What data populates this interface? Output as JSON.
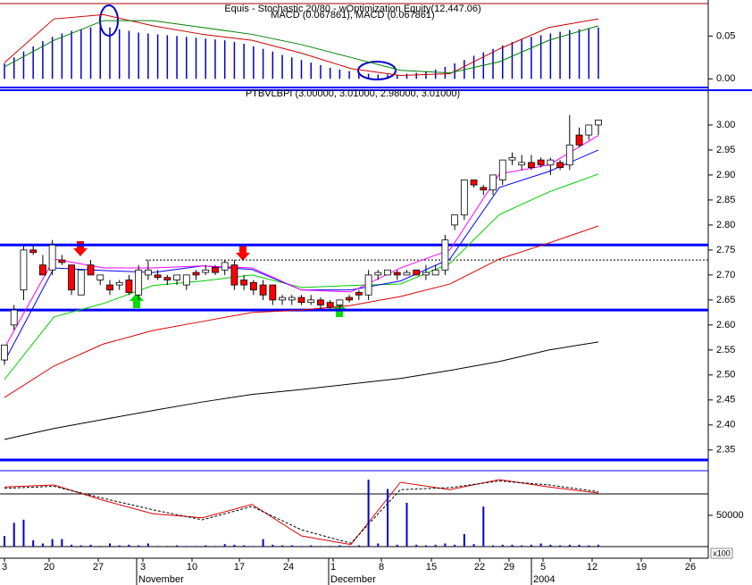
{
  "chart_data": [
    {
      "type": "macd",
      "title": "Equis - Stochastic 20/80 - wOptimization Equity(12,447.06)",
      "subtitle": "MACD (0.067861), MACD (0.067861)",
      "ylim": [
        -0.007,
        0.09
      ],
      "yticks": [
        {
          "value": 0,
          "label": "0.00"
        },
        {
          "value": 0.05,
          "label": "0.05"
        }
      ],
      "histogram": {
        "color": "#0000cc",
        "values": [
          0.018,
          0.025,
          0.032,
          0.038,
          0.044,
          0.049,
          0.053,
          0.056,
          0.058,
          0.06,
          0.061,
          0.06,
          0.058,
          0.056,
          0.054,
          0.053,
          0.052,
          0.051,
          0.05,
          0.049,
          0.048,
          0.047,
          0.046,
          0.045,
          0.043,
          0.041,
          0.038,
          0.035,
          0.032,
          0.028,
          0.025,
          0.022,
          0.019,
          0.016,
          0.013,
          0.011,
          0.009,
          0.007,
          0.006,
          0.005,
          0.005,
          0.005,
          0.006,
          0.007,
          0.009,
          0.011,
          0.014,
          0.018,
          0.022,
          0.027,
          0.031,
          0.035,
          0.039,
          0.043,
          0.046,
          0.049,
          0.051,
          0.053,
          0.055,
          0.057,
          0.058,
          0.059,
          0.06
        ]
      },
      "series": [
        {
          "color": "#cc0000",
          "values": [
            0.019,
            0.07,
            0.075,
            0.062,
            0.052,
            0.045,
            0.03,
            0.012,
            0.004,
            0.006,
            0.035,
            0.06,
            0.07
          ]
        },
        {
          "color": "#008000",
          "values": [
            0.014,
            0.045,
            0.068,
            0.068,
            0.06,
            0.052,
            0.04,
            0.025,
            0.01,
            0.007,
            0.02,
            0.045,
            0.062
          ]
        }
      ]
    },
    {
      "type": "candlestick",
      "title": "PTBVLBPI (3.00000, 3.01000, 2.98000, 3.01000)",
      "ylim": [
        2.33,
        3.066
      ],
      "yticks": [
        {
          "value": 3,
          "label": "3.00"
        },
        2.95,
        {
          "value": 2.9,
          "label": "2.90"
        },
        2.85,
        {
          "value": 2.8,
          "label": "2.80"
        },
        2.75,
        {
          "value": 2.7,
          "label": "2.70"
        },
        2.65,
        {
          "value": 2.6,
          "label": "2.60"
        },
        2.55,
        {
          "value": 2.5,
          "label": "2.50"
        },
        2.45,
        {
          "value": 2.4,
          "label": "2.40"
        },
        2.35
      ],
      "up_color": "#ffffff",
      "down_color": "#ff0000",
      "candles": [
        [
          2.53,
          2.56,
          2.52,
          2.56
        ],
        [
          2.6,
          2.64,
          2.59,
          2.63
        ],
        [
          2.67,
          2.76,
          2.65,
          2.75
        ],
        [
          2.75,
          2.76,
          2.74,
          2.745
        ],
        [
          2.72,
          2.74,
          2.7,
          2.7
        ],
        [
          2.71,
          2.77,
          2.7,
          2.76
        ],
        [
          2.73,
          2.74,
          2.72,
          2.725
        ],
        [
          2.72,
          2.72,
          2.66,
          2.67
        ],
        [
          2.66,
          2.71,
          2.66,
          2.71
        ],
        [
          2.72,
          2.73,
          2.7,
          2.7
        ],
        [
          2.69,
          2.7,
          2.68,
          2.7
        ],
        [
          2.68,
          2.69,
          2.66,
          2.67
        ],
        [
          2.68,
          2.69,
          2.67,
          2.685
        ],
        [
          2.69,
          2.7,
          2.66,
          2.665
        ],
        [
          2.66,
          2.72,
          2.65,
          2.71
        ],
        [
          2.7,
          2.73,
          2.69,
          2.71
        ],
        [
          2.7,
          2.71,
          2.69,
          2.695
        ],
        [
          2.695,
          2.7,
          2.68,
          2.69
        ],
        [
          2.69,
          2.7,
          2.68,
          2.7
        ],
        [
          2.68,
          2.7,
          2.67,
          2.7
        ],
        [
          2.705,
          2.71,
          2.69,
          2.7
        ],
        [
          2.705,
          2.72,
          2.7,
          2.71
        ],
        [
          2.715,
          2.72,
          2.7,
          2.705
        ],
        [
          2.71,
          2.73,
          2.7,
          2.725
        ],
        [
          2.72,
          2.73,
          2.67,
          2.68
        ],
        [
          2.69,
          2.7,
          2.67,
          2.68
        ],
        [
          2.685,
          2.69,
          2.66,
          2.67
        ],
        [
          2.68,
          2.69,
          2.65,
          2.66
        ],
        [
          2.68,
          2.68,
          2.64,
          2.65
        ],
        [
          2.65,
          2.66,
          2.64,
          2.655
        ],
        [
          2.65,
          2.66,
          2.64,
          2.655
        ],
        [
          2.655,
          2.66,
          2.64,
          2.645
        ],
        [
          2.645,
          2.66,
          2.64,
          2.65
        ],
        [
          2.65,
          2.655,
          2.63,
          2.64
        ],
        [
          2.645,
          2.65,
          2.63,
          2.635
        ],
        [
          2.64,
          2.65,
          2.63,
          2.65
        ],
        [
          2.655,
          2.66,
          2.645,
          2.65
        ],
        [
          2.665,
          2.67,
          2.65,
          2.66
        ],
        [
          2.66,
          2.71,
          2.65,
          2.7
        ],
        [
          2.7,
          2.71,
          2.69,
          2.705
        ],
        [
          2.7,
          2.71,
          2.7,
          2.71
        ],
        [
          2.705,
          2.71,
          2.69,
          2.7
        ],
        [
          2.7,
          2.71,
          2.7,
          2.705
        ],
        [
          2.71,
          2.71,
          2.7,
          2.7
        ],
        [
          2.7,
          2.72,
          2.69,
          2.705
        ],
        [
          2.7,
          2.72,
          2.7,
          2.71
        ],
        [
          2.71,
          2.78,
          2.7,
          2.77
        ],
        [
          2.8,
          2.82,
          2.79,
          2.82
        ],
        [
          2.82,
          2.89,
          2.81,
          2.89
        ],
        [
          2.89,
          2.89,
          2.875,
          2.88
        ],
        [
          2.875,
          2.88,
          2.86,
          2.87
        ],
        [
          2.87,
          2.9,
          2.86,
          2.9
        ],
        [
          2.89,
          2.93,
          2.88,
          2.93
        ],
        [
          2.93,
          2.945,
          2.92,
          2.935
        ],
        [
          2.92,
          2.94,
          2.91,
          2.925
        ],
        [
          2.925,
          2.94,
          2.91,
          2.915
        ],
        [
          2.93,
          2.935,
          2.915,
          2.92
        ],
        [
          2.92,
          2.935,
          2.9,
          2.93
        ],
        [
          2.925,
          2.93,
          2.91,
          2.915
        ],
        [
          2.92,
          3.02,
          2.91,
          2.96
        ],
        [
          2.98,
          2.995,
          2.955,
          2.96
        ],
        [
          2.98,
          3.0,
          2.97,
          3.0
        ],
        [
          3.0,
          3.01,
          2.98,
          3.01
        ]
      ],
      "series": [
        {
          "color": "#000000",
          "values": [
            2.371,
            2.393,
            2.411,
            2.429,
            2.446,
            2.461,
            2.471,
            2.482,
            2.493,
            2.509,
            2.527,
            2.55,
            2.566
          ]
        },
        {
          "color": "#dd0000",
          "values": [
            2.455,
            2.518,
            2.562,
            2.589,
            2.607,
            2.625,
            2.63,
            2.639,
            2.657,
            2.682,
            2.732,
            2.764,
            2.798
          ]
        },
        {
          "color": "#00cc00",
          "values": [
            2.491,
            2.616,
            2.643,
            2.679,
            2.688,
            2.7,
            2.675,
            2.679,
            2.682,
            2.723,
            2.821,
            2.866,
            2.902
          ]
        },
        {
          "color": "#0000ff",
          "values": [
            2.527,
            2.714,
            2.709,
            2.705,
            2.718,
            2.711,
            2.67,
            2.67,
            2.688,
            2.732,
            2.875,
            2.907,
            2.95
          ]
        },
        {
          "color": "#ff00ff",
          "values": [
            2.554,
            2.732,
            2.714,
            2.714,
            2.718,
            2.714,
            2.67,
            2.666,
            2.714,
            2.75,
            2.902,
            2.92,
            2.979
          ]
        }
      ],
      "hlines": [
        {
          "value": 2.76,
          "color": "#0000ff"
        },
        {
          "value": 2.63,
          "color": "#0000ff"
        },
        {
          "value": 2.33,
          "color": "#0000ff"
        }
      ],
      "dashed_line": {
        "value": 2.73,
        "color": "#000000"
      }
    },
    {
      "type": "stochastic",
      "ylim": [
        0,
        100
      ],
      "series": [
        {
          "color": "#dd0000",
          "values": [
            89,
            92,
            69,
            49,
            43,
            63,
            16,
            3,
            96,
            85,
            100,
            89,
            80
          ]
        },
        {
          "color": "#000000",
          "values": [
            87,
            90,
            72,
            55,
            40,
            60,
            25,
            5,
            85,
            88,
            98,
            92,
            82
          ]
        }
      ]
    },
    {
      "type": "volume",
      "ylim": [
        0,
        107000
      ],
      "yticks": [
        50000
      ],
      "unit": "x100",
      "color": "#0000cc",
      "values": [
        17000,
        38000,
        43000,
        10000,
        5000,
        12000,
        12000,
        3000,
        2000,
        3000,
        1000,
        5000,
        2000,
        3000,
        2000,
        5000,
        1000,
        1000,
        2000,
        1000,
        1000,
        2000,
        1000,
        4000,
        3000,
        2000,
        1000,
        12000,
        3000,
        2000,
        2000,
        1000,
        2000,
        1000,
        1000,
        2000,
        1000,
        2000,
        107000,
        5000,
        92000,
        3000,
        70000,
        3000,
        2000,
        3000,
        5000,
        3000,
        20000,
        4000,
        64000,
        2000,
        3000,
        3000,
        2000,
        3000,
        5000,
        3000,
        2000,
        3000,
        3000,
        2000,
        3000
      ],
      "x_labels": [
        "3",
        "20",
        "27",
        "3",
        "10",
        "17",
        "24",
        "1",
        "8",
        "15",
        "22",
        "29",
        "5",
        "12",
        "19",
        "26"
      ],
      "months": [
        "November",
        "December",
        "2004"
      ]
    }
  ]
}
